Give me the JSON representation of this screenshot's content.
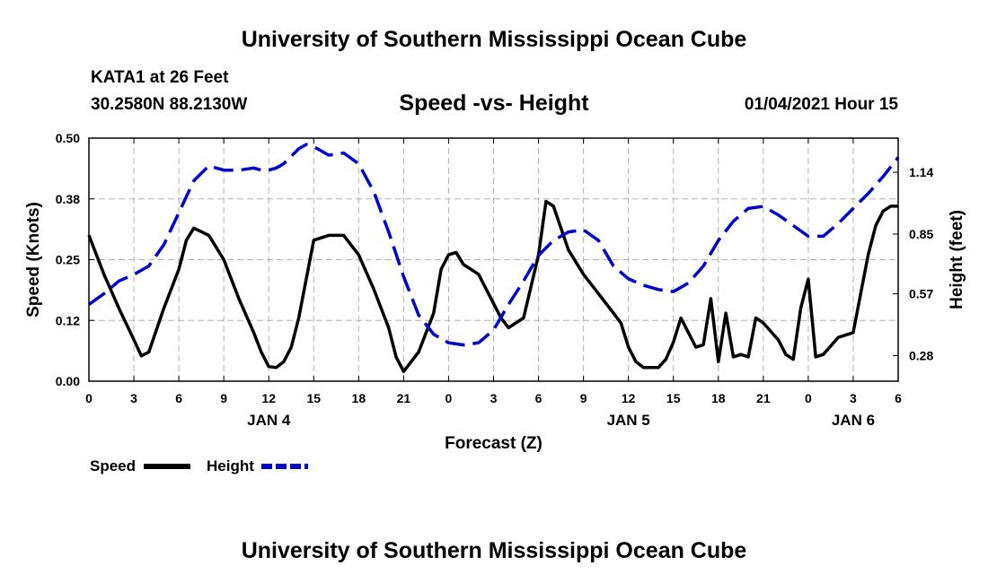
{
  "header": {
    "title": "University of Southern Mississippi Ocean Cube",
    "station": "KATA1 at 26 Feet",
    "coords": "30.2580N 88.2130W",
    "plot_title": "Speed -vs- Height",
    "datetime": "01/04/2021 Hour 15"
  },
  "footer": {
    "title": "University of Southern Mississippi Ocean Cube"
  },
  "colors": {
    "speed": "#000000",
    "height": "#0000cc",
    "grid": "#b4b4b4"
  },
  "chart_data": {
    "type": "line",
    "xlabel": "Forecast (Z)",
    "ylabel_left": "Speed (Knots)",
    "ylabel_right": "Height (feet)",
    "xlim": [
      0,
      54
    ],
    "ylim_left": [
      0,
      0.5
    ],
    "ylim_right": [
      0.16,
      1.3
    ],
    "grid": true,
    "x_ticks": [
      {
        "x": 0,
        "label": "0"
      },
      {
        "x": 3,
        "label": "3"
      },
      {
        "x": 6,
        "label": "6"
      },
      {
        "x": 9,
        "label": "9"
      },
      {
        "x": 12,
        "label": "12"
      },
      {
        "x": 15,
        "label": "15"
      },
      {
        "x": 18,
        "label": "18"
      },
      {
        "x": 21,
        "label": "21"
      },
      {
        "x": 24,
        "label": "0"
      },
      {
        "x": 27,
        "label": "3"
      },
      {
        "x": 30,
        "label": "6"
      },
      {
        "x": 33,
        "label": "9"
      },
      {
        "x": 36,
        "label": "12"
      },
      {
        "x": 39,
        "label": "15"
      },
      {
        "x": 42,
        "label": "18"
      },
      {
        "x": 45,
        "label": "21"
      },
      {
        "x": 48,
        "label": "0"
      },
      {
        "x": 51,
        "label": "3"
      },
      {
        "x": 54,
        "label": "6"
      }
    ],
    "day_labels": [
      {
        "x": 12,
        "label": "JAN 4"
      },
      {
        "x": 36,
        "label": "JAN 5"
      },
      {
        "x": 51,
        "label": "JAN 6"
      }
    ],
    "y_ticks_left": [
      {
        "value": 0.0,
        "label": "0.00"
      },
      {
        "value": 0.125,
        "label": "0.12"
      },
      {
        "value": 0.25,
        "label": "0.25"
      },
      {
        "value": 0.375,
        "label": "0.38"
      },
      {
        "value": 0.5,
        "label": "0.50"
      }
    ],
    "y_ticks_right": [
      {
        "value": 0.28,
        "label": "0.28"
      },
      {
        "value": 0.57,
        "label": "0.57"
      },
      {
        "value": 0.85,
        "label": "0.85"
      },
      {
        "value": 1.14,
        "label": "1.14"
      }
    ],
    "legend": {
      "placement": "bottom-left"
    },
    "series": [
      {
        "name": "Speed",
        "axis": "left",
        "style": "solid",
        "x": [
          0,
          1,
          2,
          3,
          3.5,
          4,
          5,
          6,
          6.5,
          7,
          8,
          9,
          10,
          11,
          11.5,
          12,
          12.5,
          13,
          13.5,
          14,
          15,
          16,
          17,
          18,
          19,
          20,
          20.5,
          21,
          22,
          23,
          23.5,
          24,
          24.5,
          25,
          26,
          27,
          27.5,
          28,
          29,
          30,
          30.5,
          31,
          32,
          33,
          34,
          35,
          35.5,
          36,
          36.5,
          37,
          38,
          38.5,
          39,
          39.5,
          40,
          40.5,
          41,
          41.5,
          42,
          42.5,
          43,
          43.5,
          44,
          44.5,
          45,
          46,
          46.5,
          47,
          47.5,
          48,
          48.5,
          49,
          50,
          51,
          52,
          52.5,
          53,
          53.5,
          54
        ],
        "y": [
          0.3,
          0.22,
          0.15,
          0.085,
          0.052,
          0.06,
          0.15,
          0.23,
          0.29,
          0.315,
          0.3,
          0.25,
          0.17,
          0.1,
          0.06,
          0.03,
          0.028,
          0.04,
          0.07,
          0.13,
          0.29,
          0.3,
          0.3,
          0.26,
          0.19,
          0.11,
          0.05,
          0.02,
          0.06,
          0.14,
          0.23,
          0.26,
          0.265,
          0.24,
          0.22,
          0.16,
          0.13,
          0.11,
          0.13,
          0.26,
          0.37,
          0.36,
          0.27,
          0.22,
          0.18,
          0.14,
          0.12,
          0.07,
          0.04,
          0.028,
          0.028,
          0.045,
          0.08,
          0.13,
          0.1,
          0.07,
          0.075,
          0.17,
          0.04,
          0.14,
          0.05,
          0.055,
          0.05,
          0.13,
          0.12,
          0.085,
          0.055,
          0.045,
          0.15,
          0.21,
          0.05,
          0.055,
          0.09,
          0.1,
          0.26,
          0.32,
          0.35,
          0.36,
          0.36
        ]
      },
      {
        "name": "Height",
        "axis": "right",
        "style": "dashed",
        "x": [
          0,
          1,
          2,
          3,
          4,
          5,
          6,
          7,
          8,
          9,
          10,
          11,
          11.5,
          12,
          12.5,
          13,
          14,
          14.5,
          15,
          16,
          17,
          18,
          19,
          20,
          21,
          22,
          23,
          24,
          25,
          26,
          27,
          28,
          29,
          30,
          31,
          32,
          33,
          34,
          35,
          36,
          37,
          38,
          39,
          40,
          41,
          42,
          43,
          44,
          45,
          46,
          47,
          48,
          49,
          50,
          51,
          52,
          53,
          54
        ],
        "y": [
          0.52,
          0.57,
          0.63,
          0.66,
          0.7,
          0.8,
          0.95,
          1.1,
          1.17,
          1.15,
          1.15,
          1.16,
          1.15,
          1.15,
          1.16,
          1.18,
          1.25,
          1.27,
          1.26,
          1.22,
          1.23,
          1.18,
          1.05,
          0.86,
          0.65,
          0.47,
          0.38,
          0.34,
          0.33,
          0.34,
          0.4,
          0.52,
          0.63,
          0.75,
          0.82,
          0.86,
          0.87,
          0.82,
          0.7,
          0.64,
          0.61,
          0.59,
          0.58,
          0.62,
          0.7,
          0.82,
          0.91,
          0.97,
          0.98,
          0.94,
          0.89,
          0.84,
          0.84,
          0.9,
          0.97,
          1.04,
          1.12,
          1.21
        ]
      }
    ]
  }
}
